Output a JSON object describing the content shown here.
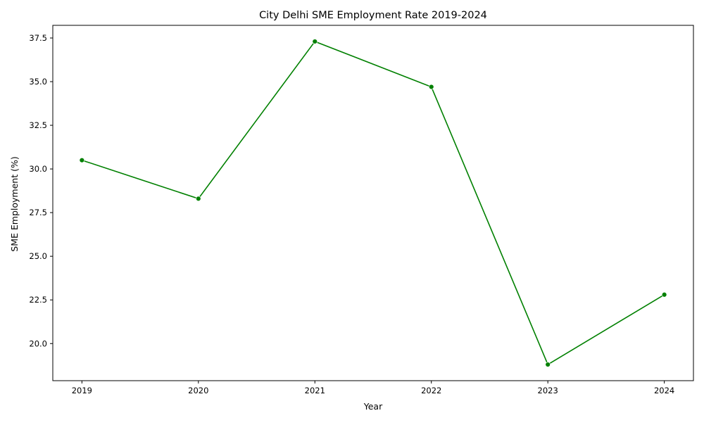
{
  "chart_data": {
    "type": "line",
    "title": "City Delhi SME Employment Rate 2019-2024",
    "xlabel": "Year",
    "ylabel": "SME Employment (%)",
    "x": [
      2019,
      2020,
      2021,
      2022,
      2023,
      2024
    ],
    "x_tick_labels": [
      "2019",
      "2020",
      "2021",
      "2022",
      "2023",
      "2024"
    ],
    "series": [
      {
        "values": [
          30.5,
          28.3,
          37.3,
          34.7,
          18.8,
          22.8
        ],
        "color": "#008000",
        "marker": "circle"
      }
    ],
    "y_ticks": [
      20.0,
      22.5,
      25.0,
      27.5,
      30.0,
      32.5,
      35.0,
      37.5
    ],
    "y_tick_labels": [
      "20.0",
      "22.5",
      "25.0",
      "27.5",
      "30.0",
      "32.5",
      "35.0",
      "37.5"
    ],
    "xlim": [
      2018.75,
      2024.25
    ],
    "ylim": [
      17.875,
      38.225
    ],
    "grid": false,
    "legend": "none"
  }
}
